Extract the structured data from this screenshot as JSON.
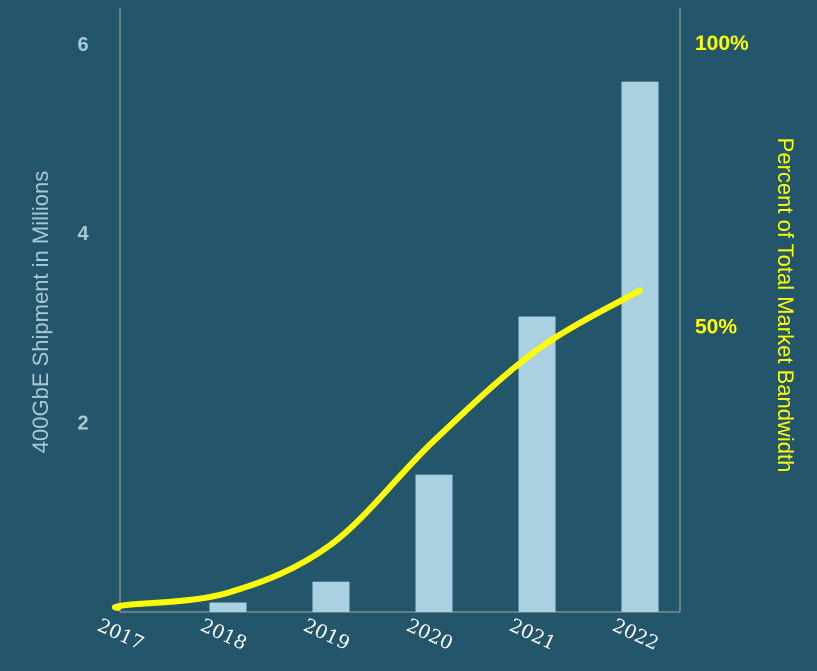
{
  "colors": {
    "background": "#23566a",
    "bar": "#a9d1e2",
    "axis": "#7a8a90",
    "left_labels": "#a9c8d6",
    "line": "#ffff00",
    "right_labels": "#ffff00"
  },
  "chart_data": {
    "type": "bar",
    "title": "",
    "categories": [
      "2017",
      "2018",
      "2019",
      "2020",
      "2021",
      "2022"
    ],
    "series": [
      {
        "type": "bar",
        "axis": "left",
        "values": [
          0.01,
          0.1,
          0.32,
          1.45,
          3.12,
          5.6
        ]
      },
      {
        "type": "line",
        "axis": "right",
        "values": [
          0.5,
          2.7,
          11.2,
          29.5,
          45.5,
          56.0
        ]
      }
    ],
    "ylabel": "400GbE Shipment in Millions",
    "ylim": [
      0,
      6
    ],
    "yticks": [
      "2",
      "4",
      "6"
    ],
    "ylabel_right": "Percent of Total Market Bandwidth",
    "ylim_right": [
      0,
      100
    ],
    "yticks_right": [
      "50%",
      "100%"
    ],
    "grid": false,
    "legend": "none"
  }
}
